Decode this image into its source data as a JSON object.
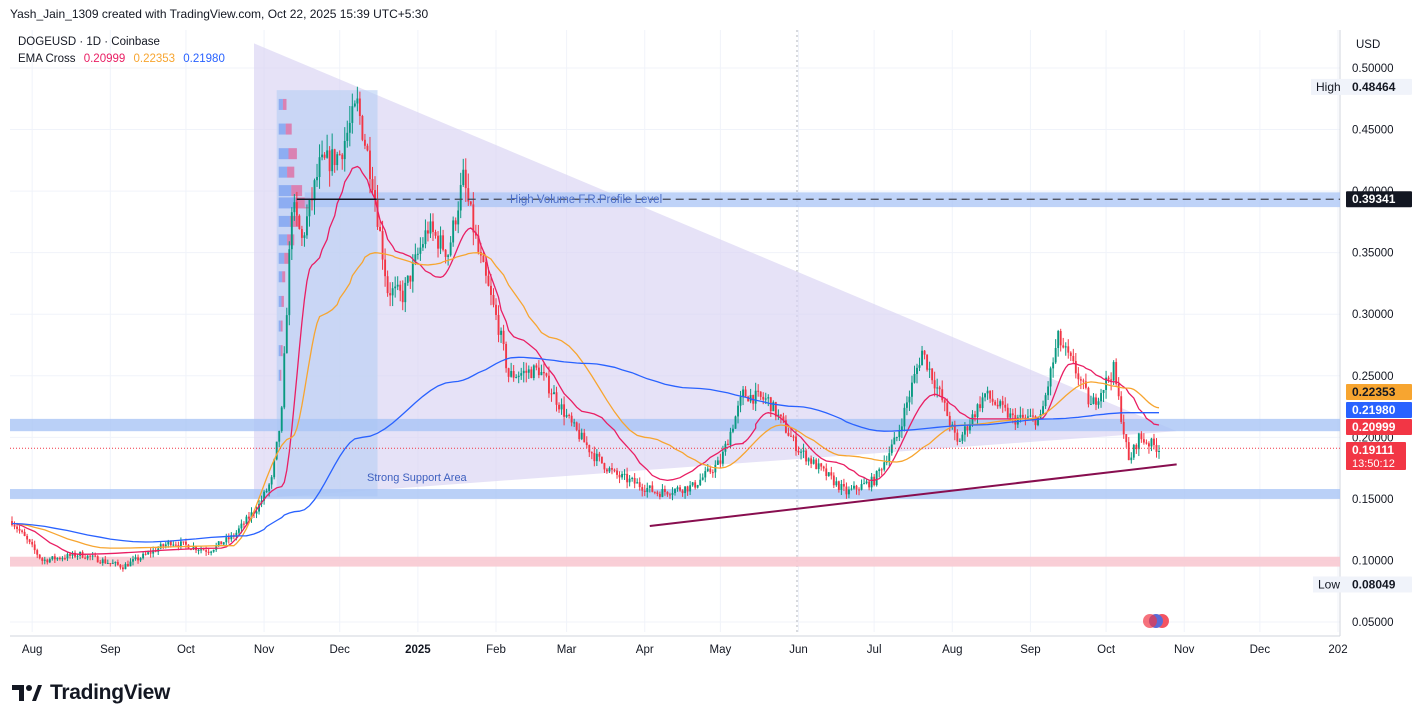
{
  "header": {
    "caption": "Yash_Jain_1309 created with TradingView.com, Oct 22, 2025 15:39 UTC+5:30"
  },
  "legend": {
    "symbol": "DOGEUSD · 1D · Coinbase",
    "indicator": "EMA Cross",
    "ema_fast": "0.20999",
    "ema_mid": "0.22353",
    "ema_slow": "0.21980"
  },
  "branding": {
    "name": "TradingView"
  },
  "colors": {
    "up": "#089981",
    "down": "#f23645",
    "ema_fast": "#e91e63",
    "ema_mid": "#f7a530",
    "ema_slow": "#2962ff",
    "triangle": "#d9d3f2",
    "support_band": "#bcd0f7",
    "resistance_band": "#f8c9d2",
    "trendline": "#880e4f"
  },
  "chart_data": {
    "type": "candlestick",
    "symbol": "DOGEUSD",
    "timeframe": "1D",
    "currency": "USD",
    "y_axis": {
      "min": 0.05,
      "max": 0.5,
      "ticks": [
        "0.50000",
        "0.45000",
        "0.40000",
        "0.35000",
        "0.30000",
        "0.25000",
        "0.20000",
        "0.15000",
        "0.10000",
        "0.05000"
      ]
    },
    "x_axis": {
      "ticks": [
        "Aug",
        "Sep",
        "Oct",
        "Nov",
        "Dec",
        "2025",
        "Feb",
        "Mar",
        "Apr",
        "May",
        "Jun",
        "Jul",
        "Aug",
        "Sep",
        "Oct",
        "Nov",
        "Dec",
        "202"
      ]
    },
    "price_path": [
      [
        "2024-07-24",
        0.132
      ],
      [
        "2024-08-05",
        0.1
      ],
      [
        "2024-08-20",
        0.105
      ],
      [
        "2024-09-06",
        0.095
      ],
      [
        "2024-09-25",
        0.115
      ],
      [
        "2024-10-10",
        0.108
      ],
      [
        "2024-10-20",
        0.12
      ],
      [
        "2024-10-30",
        0.145
      ],
      [
        "2024-11-04",
        0.165
      ],
      [
        "2024-11-08",
        0.22
      ],
      [
        "2024-11-12",
        0.39
      ],
      [
        "2024-11-16",
        0.36
      ],
      [
        "2024-11-23",
        0.42
      ],
      [
        "2024-12-01",
        0.43
      ],
      [
        "2024-12-08",
        0.47
      ],
      [
        "2024-12-14",
        0.41
      ],
      [
        "2024-12-20",
        0.32
      ],
      [
        "2024-12-26",
        0.315
      ],
      [
        "2025-01-05",
        0.37
      ],
      [
        "2025-01-13",
        0.35
      ],
      [
        "2025-01-19",
        0.41
      ],
      [
        "2025-01-25",
        0.35
      ],
      [
        "2025-02-02",
        0.29
      ],
      [
        "2025-02-06",
        0.25
      ],
      [
        "2025-02-18",
        0.255
      ],
      [
        "2025-03-03",
        0.21
      ],
      [
        "2025-03-12",
        0.185
      ],
      [
        "2025-03-20",
        0.17
      ],
      [
        "2025-04-06",
        0.155
      ],
      [
        "2025-04-20",
        0.16
      ],
      [
        "2025-05-01",
        0.18
      ],
      [
        "2025-05-10",
        0.235
      ],
      [
        "2025-05-20",
        0.23
      ],
      [
        "2025-06-01",
        0.19
      ],
      [
        "2025-06-20",
        0.155
      ],
      [
        "2025-07-01",
        0.165
      ],
      [
        "2025-07-10",
        0.2
      ],
      [
        "2025-07-20",
        0.27
      ],
      [
        "2025-07-28",
        0.23
      ],
      [
        "2025-08-03",
        0.195
      ],
      [
        "2025-08-14",
        0.235
      ],
      [
        "2025-08-25",
        0.215
      ],
      [
        "2025-09-05",
        0.215
      ],
      [
        "2025-09-12",
        0.28
      ],
      [
        "2025-09-20",
        0.25
      ],
      [
        "2025-09-25",
        0.225
      ],
      [
        "2025-10-04",
        0.255
      ],
      [
        "2025-10-10",
        0.18
      ],
      [
        "2025-10-14",
        0.2
      ],
      [
        "2025-10-22",
        0.191
      ]
    ],
    "series": [
      {
        "name": "EMA Cross 0.20999",
        "path": [
          [
            "2024-07-24",
            0.13
          ],
          [
            "2024-08-20",
            0.105
          ],
          [
            "2024-10-15",
            0.11
          ],
          [
            "2024-11-08",
            0.16
          ],
          [
            "2024-11-20",
            0.34
          ],
          [
            "2024-12-08",
            0.42
          ],
          [
            "2024-12-25",
            0.35
          ],
          [
            "2025-01-10",
            0.33
          ],
          [
            "2025-01-22",
            0.37
          ],
          [
            "2025-02-10",
            0.28
          ],
          [
            "2025-03-10",
            0.22
          ],
          [
            "2025-04-10",
            0.165
          ],
          [
            "2025-05-10",
            0.195
          ],
          [
            "2025-05-20",
            0.22
          ],
          [
            "2025-06-15",
            0.18
          ],
          [
            "2025-07-01",
            0.165
          ],
          [
            "2025-07-25",
            0.235
          ],
          [
            "2025-08-10",
            0.215
          ],
          [
            "2025-09-05",
            0.215
          ],
          [
            "2025-09-18",
            0.26
          ],
          [
            "2025-10-05",
            0.245
          ],
          [
            "2025-10-22",
            0.21
          ]
        ]
      },
      {
        "name": "EMA Cross 0.22353",
        "path": [
          [
            "2024-07-24",
            0.13
          ],
          [
            "2024-09-01",
            0.11
          ],
          [
            "2024-10-20",
            0.112
          ],
          [
            "2024-11-12",
            0.2
          ],
          [
            "2024-11-25",
            0.3
          ],
          [
            "2024-12-15",
            0.35
          ],
          [
            "2025-01-05",
            0.34
          ],
          [
            "2025-01-25",
            0.35
          ],
          [
            "2025-02-25",
            0.28
          ],
          [
            "2025-04-01",
            0.2
          ],
          [
            "2025-05-01",
            0.175
          ],
          [
            "2025-05-25",
            0.21
          ],
          [
            "2025-06-20",
            0.185
          ],
          [
            "2025-07-10",
            0.18
          ],
          [
            "2025-08-05",
            0.21
          ],
          [
            "2025-09-01",
            0.215
          ],
          [
            "2025-09-25",
            0.245
          ],
          [
            "2025-10-10",
            0.24
          ],
          [
            "2025-10-22",
            0.224
          ]
        ]
      },
      {
        "name": "EMA Cross 0.21980",
        "path": [
          [
            "2024-07-24",
            0.13
          ],
          [
            "2024-09-15",
            0.115
          ],
          [
            "2024-10-25",
            0.12
          ],
          [
            "2024-11-15",
            0.14
          ],
          [
            "2024-12-10",
            0.2
          ],
          [
            "2025-01-15",
            0.245
          ],
          [
            "2025-02-10",
            0.265
          ],
          [
            "2025-03-10",
            0.26
          ],
          [
            "2025-04-20",
            0.24
          ],
          [
            "2025-06-01",
            0.225
          ],
          [
            "2025-07-05",
            0.205
          ],
          [
            "2025-08-10",
            0.21
          ],
          [
            "2025-09-10",
            0.215
          ],
          [
            "2025-10-10",
            0.22
          ],
          [
            "2025-10-22",
            0.22
          ]
        ]
      }
    ],
    "volume_profile": {
      "from": "2024-11-06",
      "to": "2024-12-16",
      "poc": 0.39341
    },
    "drawings": {
      "triangle": {
        "points": [
          [
            "2024-10-28",
            0.52
          ],
          [
            "2025-10-29",
            0.205
          ],
          [
            "2024-10-28",
            0.15
          ]
        ]
      },
      "support_band": {
        "low": 0.15,
        "high": 0.158,
        "label": "Strong Support Area"
      },
      "resistance_band": {
        "low": 0.205,
        "high": 0.215
      },
      "low_band": {
        "low": 0.095,
        "high": 0.103
      },
      "volume_level": {
        "low": 0.387,
        "high": 0.399,
        "label": "High Volume F.R.Profile Level",
        "price_label": "0.39341"
      },
      "trendline": {
        "from": [
          "2025-04-03",
          0.128
        ],
        "to": [
          "2025-10-29",
          0.178
        ]
      }
    },
    "high": {
      "label": "High",
      "value": "0.48464"
    },
    "low": {
      "label": "Low",
      "value": "0.08049"
    },
    "price_labels": [
      {
        "value": "0.22353",
        "color": "#f7a530"
      },
      {
        "value": "0.21980",
        "color": "#2962ff"
      },
      {
        "value": "0.20999",
        "color": "#f23645"
      }
    ],
    "last_price": {
      "value": "0.19111",
      "countdown": "13:50:12"
    }
  }
}
